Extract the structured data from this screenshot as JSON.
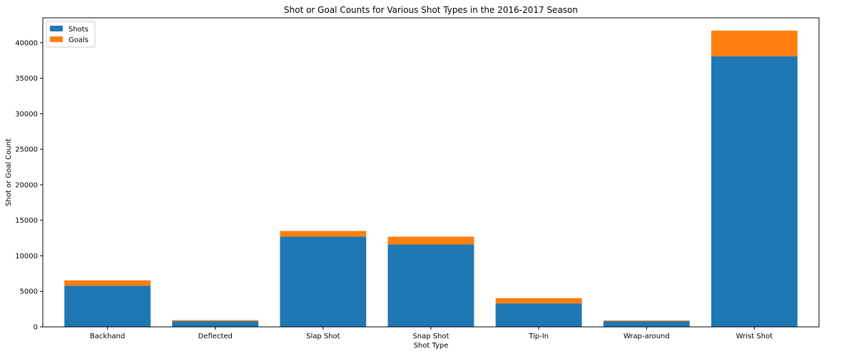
{
  "chart_data": {
    "type": "bar",
    "stacked": true,
    "title": "Shot or Goal Counts for Various Shot Types in the 2016-2017 Season",
    "xlabel": "Shot Type",
    "ylabel": "Shot or Goal Count",
    "categories": [
      "Backhand",
      "Deflected",
      "Slap Shot",
      "Snap Shot",
      "Tip-In",
      "Wrap-around",
      "Wrist Shot"
    ],
    "series": [
      {
        "name": "Shots",
        "color": "#1f77b4",
        "values": [
          5800,
          800,
          12700,
          11600,
          3300,
          800,
          38100
        ]
      },
      {
        "name": "Goals",
        "color": "#ff7f0e",
        "values": [
          750,
          150,
          800,
          1100,
          750,
          100,
          3600
        ]
      }
    ],
    "ylim": [
      0,
      43500
    ],
    "yticks": [
      0,
      5000,
      10000,
      15000,
      20000,
      25000,
      30000,
      35000,
      40000
    ],
    "grid": false,
    "legend": "top-left"
  }
}
